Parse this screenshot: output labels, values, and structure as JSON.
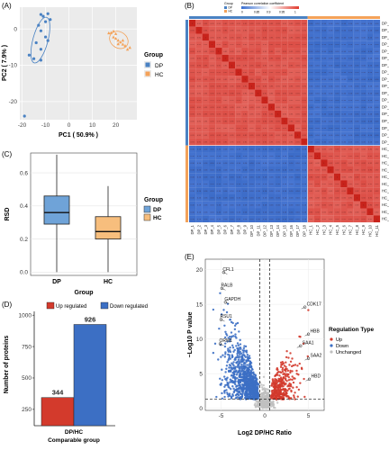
{
  "chart_data": [
    {
      "id": "A",
      "panel_label": "(A)",
      "type": "scatter",
      "xlabel": "PC1 ( 50.9% )",
      "ylabel": "PC2 ( 7.9% )",
      "xticks": [
        -20,
        -10,
        0,
        10,
        20
      ],
      "yticks": [
        -20,
        -10,
        0
      ],
      "xlim": [
        -21,
        29
      ],
      "ylim": [
        -25,
        6
      ],
      "legend_title": "Group",
      "legend_placement": "right",
      "series": [
        {
          "name": "DP",
          "color": "#4a82c3",
          "points": [
            [
              -12,
              4
            ],
            [
              -11,
              3.5
            ],
            [
              -9,
              4.2
            ],
            [
              -10,
              2
            ],
            [
              -13,
              1
            ],
            [
              -8,
              2.6
            ],
            [
              -12,
              -0.5
            ],
            [
              -10,
              -2.2
            ],
            [
              -14,
              -3.8
            ],
            [
              -12,
              -5.6
            ],
            [
              -17,
              -7.2
            ],
            [
              -15,
              -8.2
            ],
            [
              -12,
              -8.6
            ],
            [
              -9,
              -3.2
            ],
            [
              -19,
              -24
            ]
          ]
        },
        {
          "name": "HC",
          "color": "#f4a259",
          "points": [
            [
              18,
              -1
            ],
            [
              19,
              -2.2
            ],
            [
              20,
              -2.6
            ],
            [
              21,
              -3.1
            ],
            [
              22,
              -3.6
            ],
            [
              23,
              -4.2
            ],
            [
              24,
              -4.6
            ],
            [
              26,
              -5.1
            ],
            [
              19,
              -0.6
            ],
            [
              20,
              -1.3
            ],
            [
              17,
              -1.1
            ],
            [
              21,
              -4.1
            ],
            [
              25,
              -5.6
            ],
            [
              23,
              -3.1
            ]
          ]
        }
      ]
    },
    {
      "id": "B",
      "panel_label": "(B)",
      "type": "heatmap",
      "title": "Pearson correlation coefficient",
      "legend_title": "Group",
      "legend_groups": [
        "DP",
        "HC"
      ],
      "legend_colors": {
        "DP": "#4a82c3",
        "HC": "#f4a259"
      },
      "colorbar_ticks": [
        "0",
        "0.85",
        "0.9",
        "0.95",
        "1"
      ],
      "row_labels": [
        "DP_1",
        "DP_2",
        "DP_3",
        "DP_4",
        "DP_5",
        "DP_6",
        "DP_7",
        "DP_8",
        "DP_9",
        "DP_10",
        "DP_11",
        "DP_12",
        "DP_13",
        "DP_14",
        "DP_15",
        "DP_16",
        "DP_17",
        "DP_18",
        "HC_1",
        "HC_2",
        "HC_3",
        "HC_4",
        "HC_5",
        "HC_6",
        "HC_7",
        "HC_8",
        "HC_9",
        "HC_10",
        "HC_11"
      ],
      "cell_texts": {
        "same_dp": "0.91",
        "same_hc": "0.92",
        "diagonal": "1",
        "cross_group": "0.16"
      },
      "cells_rule": "DP vs DP and HC vs HC cells are high (red, ~0.9); DP vs HC cells are low (blue); diagonal = 1"
    },
    {
      "id": "C",
      "panel_label": "(C)",
      "type": "box",
      "categories": [
        "DP",
        "HC"
      ],
      "xlabel": "Group",
      "ylabel": "RSD",
      "yticks": [
        0.0,
        0.2,
        0.4,
        0.6
      ],
      "ylim": [
        -0.02,
        0.72
      ],
      "legend_title": "Group",
      "boxes": [
        {
          "name": "DP",
          "color": "#6fa3d8",
          "whisker_low": 0.0,
          "q1": 0.29,
          "median": 0.36,
          "q3": 0.46,
          "whisker_high": 0.71
        },
        {
          "name": "HC",
          "color": "#f7be7d",
          "whisker_low": 0.0,
          "q1": 0.2,
          "median": 0.245,
          "q3": 0.335,
          "whisker_high": 0.52
        }
      ]
    },
    {
      "id": "D",
      "panel_label": "(D)",
      "type": "bar",
      "categories": [
        "DP/HC"
      ],
      "xlabel": "Comparable group",
      "ylabel": "Number of proteins",
      "yticks": [
        250,
        500,
        750,
        1000
      ],
      "ylim": [
        120,
        1030
      ],
      "series": [
        {
          "name": "Up regulated",
          "color": "#d33a2c",
          "values": [
            344
          ]
        },
        {
          "name": "Down regulated",
          "color": "#3c6fc4",
          "values": [
            926
          ]
        }
      ],
      "data_labels": [
        "344",
        "926"
      ]
    },
    {
      "id": "E",
      "panel_label": "(E)",
      "type": "scatter",
      "xlabel": "Log2 DP/HC Ratio",
      "ylabel": "−Log10 P value",
      "xticks": [
        -5,
        0,
        5
      ],
      "yticks": [
        0,
        5,
        10,
        15,
        20
      ],
      "xlim": [
        -6.8,
        6.8
      ],
      "ylim": [
        -0.3,
        21.5
      ],
      "thresholds": {
        "x": [
          -0.58,
          0.58
        ],
        "y": 1.3
      },
      "legend_title": "Regulation Type",
      "legend_placement": "right",
      "series_names": [
        "Up",
        "Down",
        "Unchanged"
      ],
      "series_colors": {
        "Up": "#d33a2c",
        "Down": "#3c6fc4",
        "Unchanged": "#bfbfbf"
      },
      "counts": {
        "Up": 344,
        "Down": 926
      },
      "annotations": [
        {
          "label": "CFL1",
          "x": -4.7,
          "y": 19.6
        },
        {
          "label": "RALB",
          "x": -4.9,
          "y": 17.3
        },
        {
          "label": "GAPDH",
          "x": -4.5,
          "y": 15.3
        },
        {
          "label": "RSU1",
          "x": -5.0,
          "y": 12.8
        },
        {
          "label": "ORM1",
          "x": -5.1,
          "y": 9.3
        },
        {
          "label": "CDK17",
          "x": 4.6,
          "y": 14.6
        },
        {
          "label": "HBB",
          "x": 5.0,
          "y": 10.7
        },
        {
          "label": "SAA1",
          "x": 4.1,
          "y": 9.0
        },
        {
          "label": "SAA2",
          "x": 5.0,
          "y": 7.2
        },
        {
          "label": "HBD",
          "x": 5.1,
          "y": 4.2
        }
      ]
    }
  ]
}
